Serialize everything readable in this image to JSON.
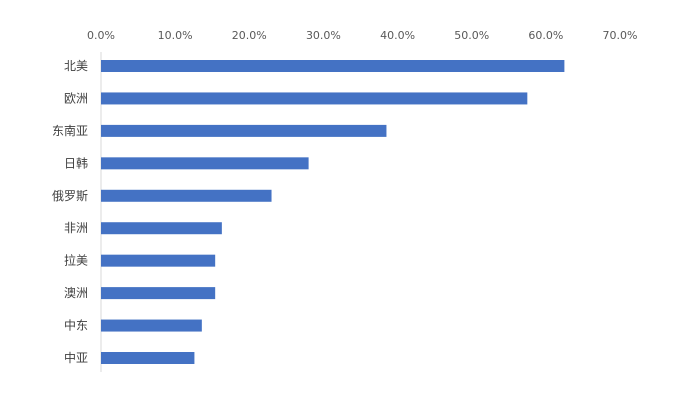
{
  "chart_data": {
    "type": "bar",
    "orientation": "horizontal",
    "categories": [
      "北美",
      "欧洲",
      "东南亚",
      "日韩",
      "俄罗斯",
      "非洲",
      "拉美",
      "澳洲",
      "中东",
      "中亚"
    ],
    "values": [
      62.5,
      57.5,
      38.5,
      28.0,
      23.0,
      16.3,
      15.4,
      15.4,
      13.6,
      12.6
    ],
    "value_axis": {
      "position": "top",
      "min": 0,
      "max": 70,
      "step": 10,
      "tick_labels": [
        "0.0%",
        "10.0%",
        "20.0%",
        "30.0%",
        "40.0%",
        "50.0%",
        "60.0%",
        "70.0%"
      ]
    },
    "grid": false,
    "legend": "none",
    "colors": {
      "bar": "#4472C4",
      "axis": "#D9D9D9"
    }
  }
}
